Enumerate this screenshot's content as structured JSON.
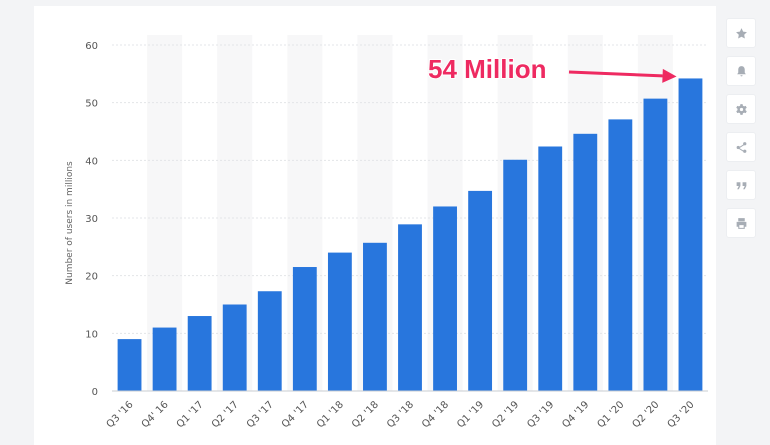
{
  "chart_data": {
    "type": "bar",
    "categories": [
      "Q3 '16",
      "Q4' 16",
      "Q1 '17",
      "Q2 '17",
      "Q3 '17",
      "Q4 '17",
      "Q1 '18",
      "Q2 '18",
      "Q3 '18",
      "Q4 '18",
      "Q1 '19",
      "Q2 '19",
      "Q3 '19",
      "Q4 '19",
      "Q1 '20",
      "Q2 '20",
      "Q3 '20"
    ],
    "values": [
      9,
      11,
      13,
      15,
      17.3,
      21.5,
      24,
      25.7,
      28.9,
      32,
      34.7,
      40.1,
      42.4,
      44.6,
      47.1,
      50.7,
      54.2
    ],
    "ylabel": "Number of users in millions",
    "xlabel": "",
    "ylim": [
      0,
      60
    ],
    "yticks": [
      0,
      10,
      20,
      30,
      40,
      50,
      60
    ],
    "bar_color": "#2876dd",
    "grid": true,
    "annotation": {
      "text": "54 Million",
      "color": "#ee2a61",
      "target_category": "Q3 '20"
    }
  },
  "toolbar": {
    "items": [
      {
        "icon": "star-icon",
        "name": "favorite-button"
      },
      {
        "icon": "bell-icon",
        "name": "notification-button"
      },
      {
        "icon": "gear-icon",
        "name": "settings-button"
      },
      {
        "icon": "share-icon",
        "name": "share-button"
      },
      {
        "icon": "quote-icon",
        "name": "cite-button"
      },
      {
        "icon": "print-icon",
        "name": "print-button"
      }
    ]
  }
}
